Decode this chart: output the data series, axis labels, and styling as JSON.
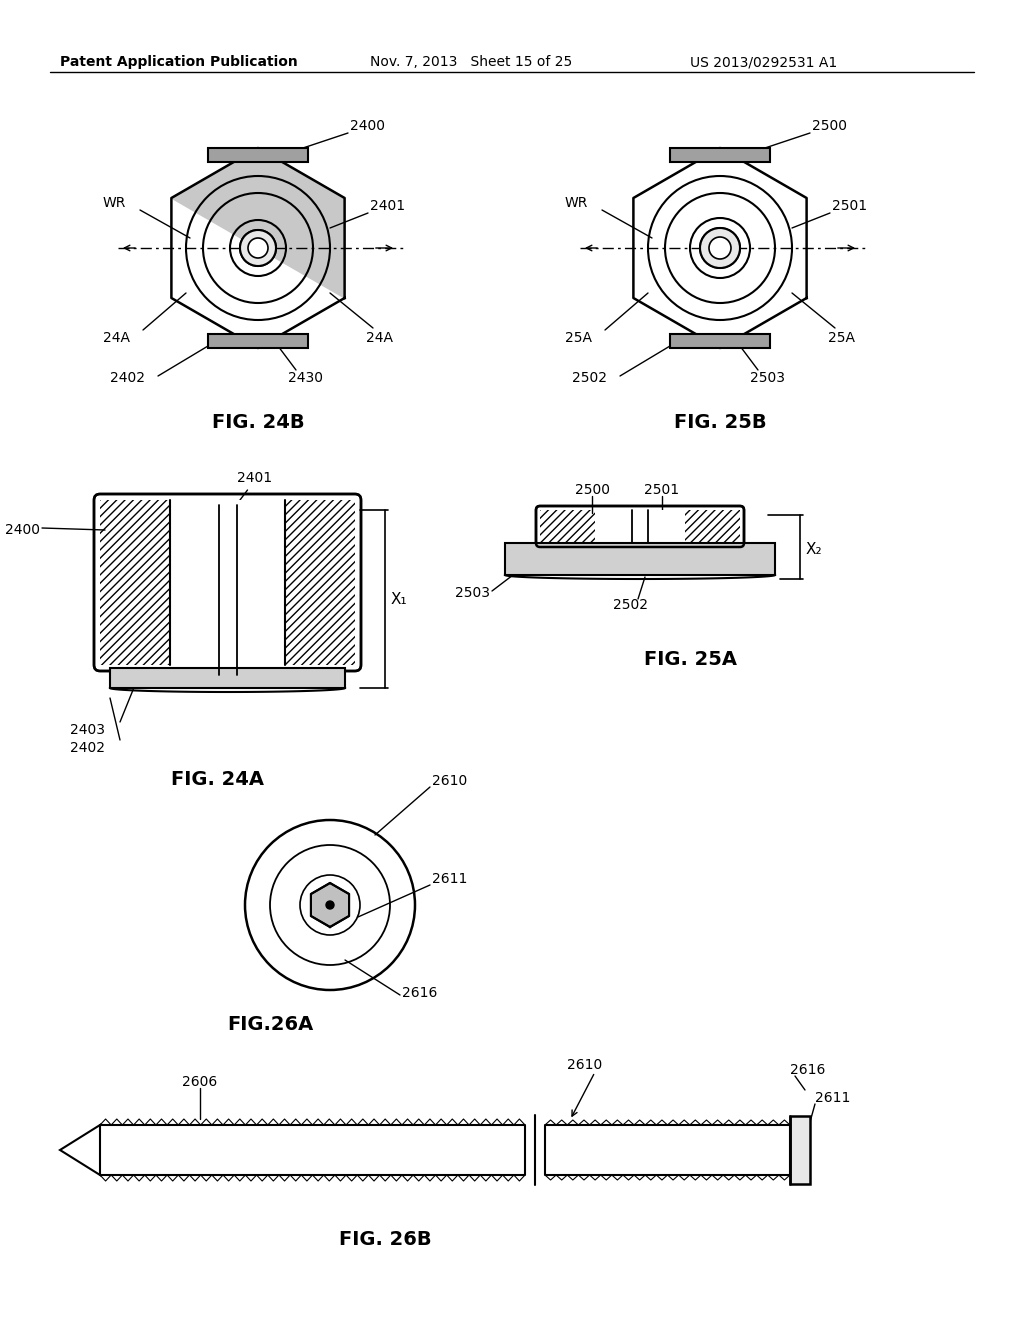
{
  "bg_color": "#ffffff",
  "header_left": "Patent Application Publication",
  "header_mid": "Nov. 7, 2013   Sheet 15 of 25",
  "header_right": "US 2013/0292531 A1",
  "fig24b_label": "FIG. 24B",
  "fig25b_label": "FIG. 25B",
  "fig24a_label": "FIG. 24A",
  "fig25a_label": "FIG. 25A",
  "fig26a_label": "FIG.26A",
  "fig26b_label": "FIG. 26B"
}
